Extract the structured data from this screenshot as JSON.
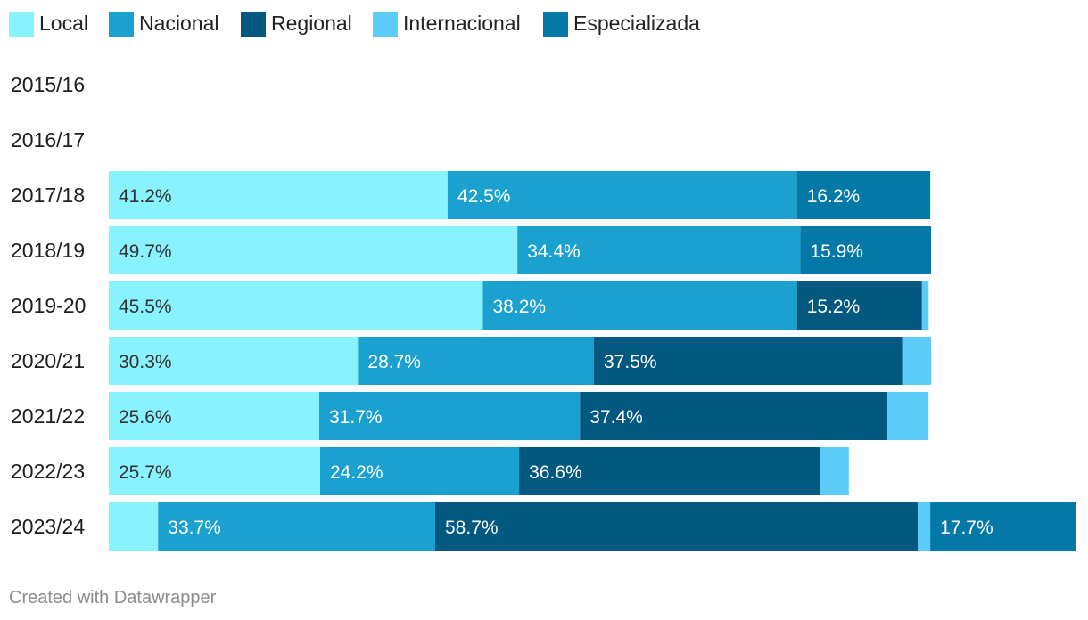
{
  "chart_data": {
    "type": "bar",
    "orientation": "horizontal",
    "stacked": true,
    "xlim": [
      0,
      100
    ],
    "series": [
      {
        "name": "Local",
        "color": "#88f2fe"
      },
      {
        "name": "Nacional",
        "color": "#1aa1cf"
      },
      {
        "name": "Regional",
        "color": "#02587f"
      },
      {
        "name": "Internacional",
        "color": "#5bcbf8"
      },
      {
        "name": "Especializada",
        "color": "#0478a7"
      }
    ],
    "categories": [
      "2015/16",
      "2016/17",
      "2017/18",
      "2018/19",
      "2019-20",
      "2020/21",
      "2021/22",
      "2022/23",
      "2023/24"
    ],
    "rows": [
      {
        "values": [
          0,
          0,
          0,
          0,
          0
        ],
        "labels": [
          "",
          "",
          "",
          "",
          ""
        ]
      },
      {
        "values": [
          0,
          0,
          0,
          0,
          0
        ],
        "labels": [
          "",
          "",
          "",
          "",
          ""
        ]
      },
      {
        "values": [
          41.2,
          42.5,
          0,
          0,
          16.2
        ],
        "labels": [
          "41.2%",
          "42.5%",
          "",
          "",
          "16.2%"
        ]
      },
      {
        "values": [
          49.7,
          34.4,
          0,
          0,
          15.9
        ],
        "labels": [
          "49.7%",
          "34.4%",
          "",
          "",
          "15.9%"
        ]
      },
      {
        "values": [
          45.5,
          38.2,
          15.2,
          0.8,
          0
        ],
        "labels": [
          "45.5%",
          "38.2%",
          "15.2%",
          "",
          ""
        ]
      },
      {
        "values": [
          30.3,
          28.7,
          37.5,
          3.5,
          0
        ],
        "labels": [
          "30.3%",
          "28.7%",
          "37.5%",
          "",
          ""
        ]
      },
      {
        "values": [
          25.6,
          31.7,
          37.4,
          5.0,
          0
        ],
        "labels": [
          "25.6%",
          "31.7%",
          "37.4%",
          "",
          ""
        ]
      },
      {
        "values": [
          25.7,
          24.2,
          36.6,
          3.5,
          0
        ],
        "labels": [
          "25.7%",
          "24.2%",
          "36.6%",
          "",
          ""
        ]
      },
      {
        "values": [
          6.0,
          33.7,
          58.7,
          1.5,
          17.7
        ],
        "labels": [
          "",
          "33.7%",
          "58.7%",
          "",
          "17.7%"
        ]
      }
    ],
    "value_unit": "%"
  },
  "footer": "Created with Datawrapper"
}
